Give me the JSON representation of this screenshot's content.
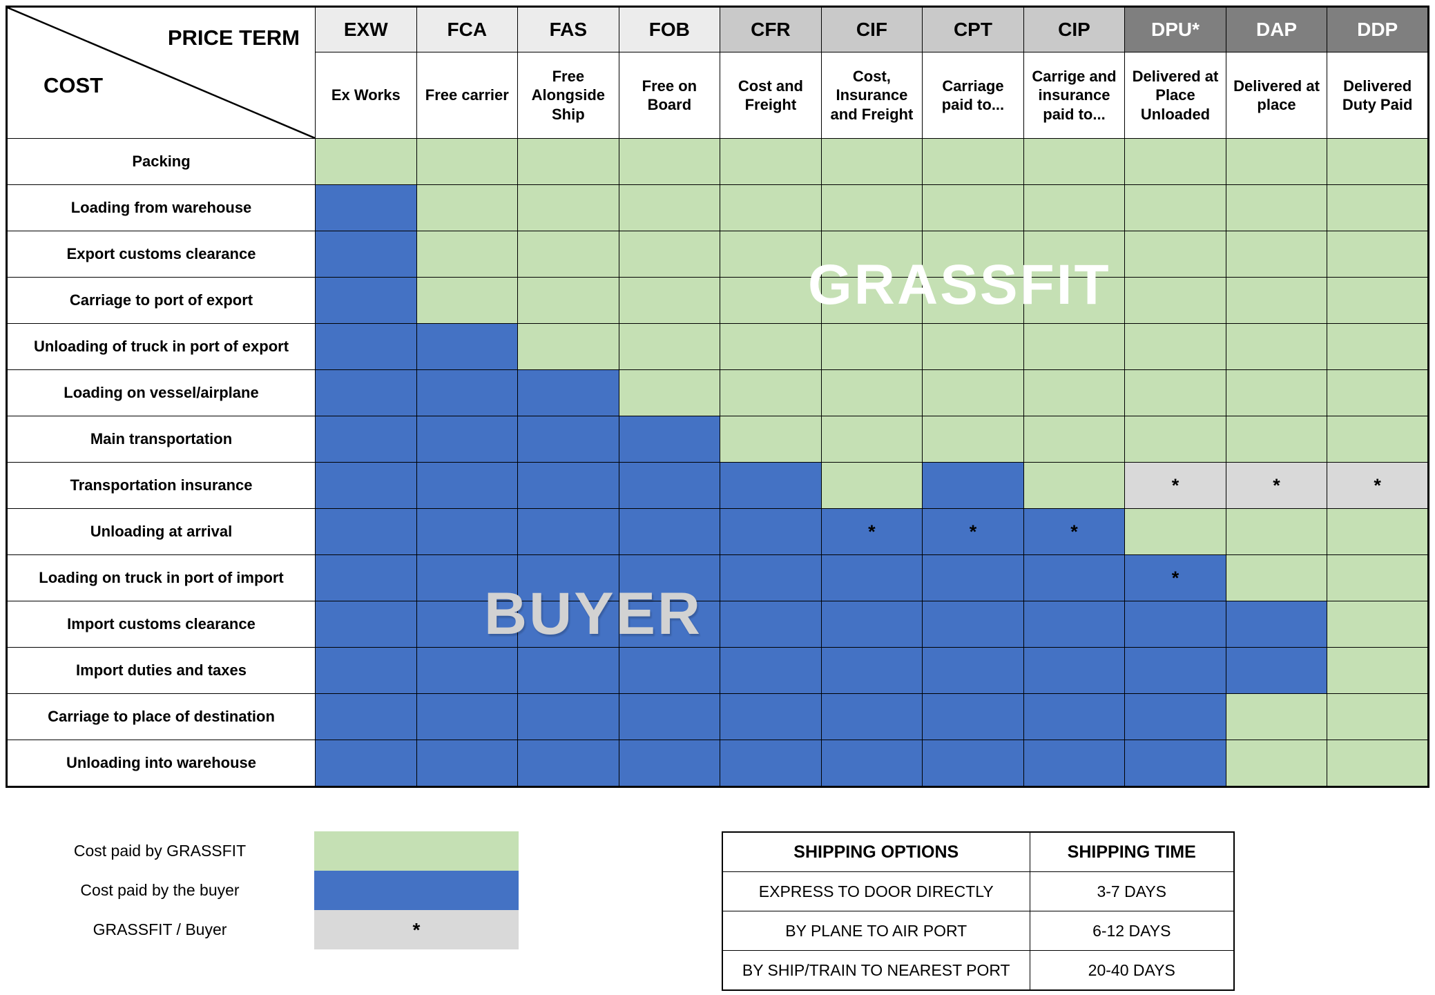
{
  "colors": {
    "seller": "#c5e0b4",
    "buyer": "#4472c4",
    "shared": "#d9d9d9",
    "header_light": "#ececec",
    "header_medium": "#c9c9c9",
    "header_dark": "#7f7f7f"
  },
  "table": {
    "corner": {
      "top_label": "PRICE TERM",
      "bottom_label": "COST"
    },
    "star_symbol": "*",
    "columns": [
      {
        "code": "EXW",
        "name": "Ex Works",
        "header_style": "light"
      },
      {
        "code": "FCA",
        "name": "Free carrier",
        "header_style": "light"
      },
      {
        "code": "FAS",
        "name": "Free Alongside Ship",
        "header_style": "light"
      },
      {
        "code": "FOB",
        "name": "Free on Board",
        "header_style": "light"
      },
      {
        "code": "CFR",
        "name": "Cost and Freight",
        "header_style": "medium"
      },
      {
        "code": "CIF",
        "name": "Cost, Insurance and Freight",
        "header_style": "medium"
      },
      {
        "code": "CPT",
        "name": "Carriage paid to...",
        "header_style": "medium"
      },
      {
        "code": "CIP",
        "name": "Carrige and insurance paid to...",
        "header_style": "medium"
      },
      {
        "code": "DPU*",
        "name": "Delivered at Place Unloaded",
        "header_style": "dark"
      },
      {
        "code": "DAP",
        "name": "Delivered at place",
        "header_style": "dark"
      },
      {
        "code": "DDP",
        "name": "Delivered Duty Paid",
        "header_style": "dark"
      }
    ]
  },
  "chart_data": {
    "type": "table",
    "columns": [
      "EXW",
      "FCA",
      "FAS",
      "FOB",
      "CFR",
      "CIF",
      "CPT",
      "CIP",
      "DPU*",
      "DAP",
      "DDP"
    ],
    "rows": [
      "Packing",
      "Loading from warehouse",
      "Export customs clearance",
      "Carriage to port of export",
      "Unloading of truck in port of export",
      "Loading on vessel/airplane",
      "Main transportation",
      "Transportation insurance",
      "Unloading at arrival",
      "Loading on truck in port of import",
      "Import customs clearance",
      "Import duties and taxes",
      "Carriage to place of destination",
      "Unloading into warehouse"
    ],
    "values": [
      [
        "G",
        "G",
        "G",
        "G",
        "G",
        "G",
        "G",
        "G",
        "G",
        "G",
        "G"
      ],
      [
        "B",
        "G",
        "G",
        "G",
        "G",
        "G",
        "G",
        "G",
        "G",
        "G",
        "G"
      ],
      [
        "B",
        "G",
        "G",
        "G",
        "G",
        "G",
        "G",
        "G",
        "G",
        "G",
        "G"
      ],
      [
        "B",
        "G",
        "G",
        "G",
        "G",
        "G",
        "G",
        "G",
        "G",
        "G",
        "G"
      ],
      [
        "B",
        "B",
        "G",
        "G",
        "G",
        "G",
        "G",
        "G",
        "G",
        "G",
        "G"
      ],
      [
        "B",
        "B",
        "B",
        "G",
        "G",
        "G",
        "G",
        "G",
        "G",
        "G",
        "G"
      ],
      [
        "B",
        "B",
        "B",
        "B",
        "G",
        "G",
        "G",
        "G",
        "G",
        "G",
        "G"
      ],
      [
        "B",
        "B",
        "B",
        "B",
        "B",
        "G",
        "B",
        "G",
        "S",
        "S",
        "S"
      ],
      [
        "B",
        "B",
        "B",
        "B",
        "B",
        "BS",
        "BS",
        "BS",
        "G",
        "G",
        "G"
      ],
      [
        "B",
        "B",
        "B",
        "B",
        "B",
        "B",
        "B",
        "B",
        "BS",
        "G",
        "G"
      ],
      [
        "B",
        "B",
        "B",
        "B",
        "B",
        "B",
        "B",
        "B",
        "B",
        "B",
        "G"
      ],
      [
        "B",
        "B",
        "B",
        "B",
        "B",
        "B",
        "B",
        "B",
        "B",
        "B",
        "G"
      ],
      [
        "B",
        "B",
        "B",
        "B",
        "B",
        "B",
        "B",
        "B",
        "B",
        "G",
        "G"
      ],
      [
        "B",
        "B",
        "B",
        "B",
        "B",
        "B",
        "B",
        "B",
        "B",
        "G",
        "G"
      ]
    ],
    "value_legend": {
      "G": "Cost paid by GRASSFIT",
      "B": "Cost paid by the buyer",
      "S": "GRASSFIT / Buyer",
      "BS": "Cost paid by the buyer (*)"
    }
  },
  "watermarks": {
    "seller": "GRASSFIT",
    "buyer": "BUYER"
  },
  "legend": [
    {
      "label": "Cost paid by GRASSFIT",
      "swatch": "G",
      "mark": ""
    },
    {
      "label": "Cost paid by the buyer",
      "swatch": "B",
      "mark": ""
    },
    {
      "label": "GRASSFIT / Buyer",
      "swatch": "S",
      "mark": "*"
    }
  ],
  "shipping": {
    "headers": [
      "SHIPPING OPTIONS",
      "SHIPPING TIME"
    ],
    "rows": [
      [
        "EXPRESS TO DOOR DIRECTLY",
        "3-7 DAYS"
      ],
      [
        "BY PLANE TO AIR PORT",
        "6-12 DAYS"
      ],
      [
        "BY SHIP/TRAIN TO NEAREST PORT",
        "20-40 DAYS"
      ]
    ]
  }
}
